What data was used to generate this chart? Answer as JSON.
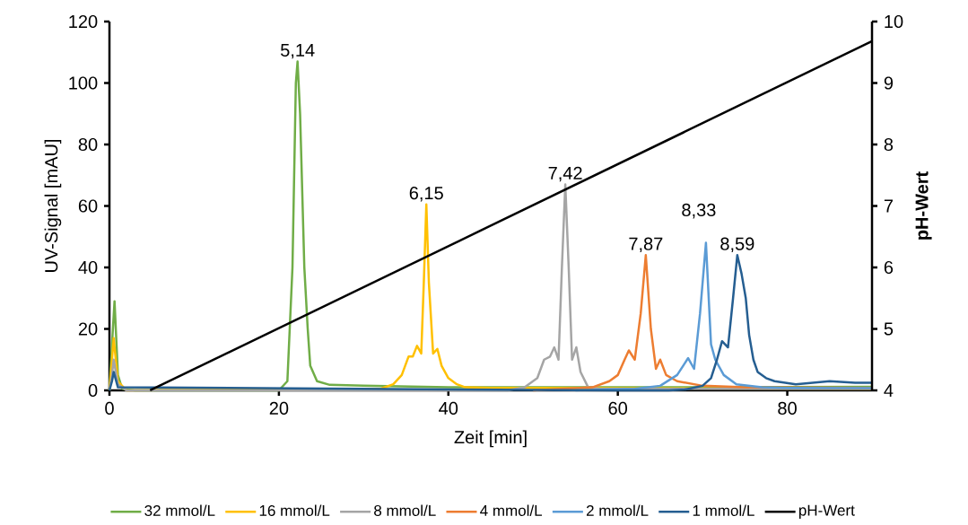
{
  "chart_data": {
    "type": "line",
    "xlabel": "Zeit [min]",
    "ylabel": "UV-Signal [mAU]",
    "y2label": "pH-Wert",
    "xlim": [
      0,
      90
    ],
    "xticks": [
      0,
      20,
      40,
      60,
      80
    ],
    "ylim": [
      0,
      120
    ],
    "yticks": [
      0,
      20,
      40,
      60,
      80,
      100,
      120
    ],
    "y2lim": [
      4,
      10
    ],
    "y2ticks": [
      4,
      5,
      6,
      7,
      8,
      9,
      10
    ],
    "grid": false,
    "legend": "bottom",
    "marker": "none",
    "line_style": "solid",
    "series": [
      {
        "name": "32 mmol/L",
        "color": "#70ad47",
        "x": [
          0,
          0.3,
          0.6,
          1,
          1.5,
          3,
          20,
          21,
          21.6,
          22,
          22.2,
          22.5,
          23,
          23.4,
          23.7,
          24.5,
          26,
          30,
          40,
          60,
          90
        ],
        "values": [
          0,
          15,
          29,
          5,
          0.5,
          0,
          0,
          3,
          40,
          100,
          107,
          90,
          40,
          20,
          8,
          3,
          1.8,
          1.5,
          1,
          1,
          1.2
        ]
      },
      {
        "name": "16 mmol/L",
        "color": "#ffc000",
        "x": [
          0,
          0.3,
          0.5,
          1,
          2,
          30,
          32,
          33.5,
          34.5,
          35.3,
          35.8,
          36.3,
          36.8,
          37.1,
          37.4,
          37.7,
          38.2,
          38.7,
          39.2,
          40,
          41,
          42,
          45,
          90
        ],
        "values": [
          0,
          10,
          17,
          3,
          0,
          0.5,
          0.5,
          2,
          5,
          11,
          11,
          14.5,
          12,
          35,
          60.5,
          35,
          12,
          13.5,
          8,
          4,
          2,
          1,
          0.8,
          0.5
        ]
      },
      {
        "name": "8 mmol/L",
        "color": "#a5a5a5",
        "x": [
          0,
          0.3,
          0.5,
          1,
          2,
          47,
          49,
          50.5,
          51.3,
          52,
          52.5,
          53,
          53.4,
          53.8,
          54.2,
          54.6,
          55.1,
          55.6,
          56.5,
          58,
          90
        ],
        "values": [
          0,
          5,
          10,
          2,
          0,
          0,
          1,
          4,
          10,
          11,
          14,
          10,
          40,
          67,
          40,
          10,
          14,
          6,
          1,
          0.5,
          0.5
        ]
      },
      {
        "name": "4 mmol/L",
        "color": "#ed7d31",
        "x": [
          50,
          57,
          59,
          60,
          60.8,
          61.3,
          62,
          62.7,
          63.3,
          63.9,
          64.5,
          65,
          65.7,
          67,
          70,
          75,
          90
        ],
        "values": [
          0,
          1,
          3,
          5,
          10,
          13,
          10,
          25,
          44,
          20,
          7,
          10,
          5,
          3,
          1.5,
          1,
          0.8
        ]
      },
      {
        "name": "2 mmol/L",
        "color": "#5b9bd5",
        "x": [
          55,
          62,
          65,
          67,
          68.3,
          69,
          69.7,
          70.4,
          71,
          71.5,
          72.5,
          74,
          77,
          80,
          90
        ],
        "values": [
          0,
          0.5,
          1.5,
          5,
          10.5,
          7,
          25,
          48,
          15,
          10,
          5,
          2,
          1,
          0.8,
          0.7
        ]
      },
      {
        "name": "1  mmol/L",
        "color": "#255e91",
        "x": [
          0,
          0.3,
          0.5,
          1,
          60,
          66,
          68,
          70,
          71,
          71.7,
          72.3,
          73,
          73.6,
          74.1,
          74.6,
          75.1,
          75.5,
          76,
          76.5,
          77.5,
          78.5,
          81,
          85,
          88,
          90
        ],
        "values": [
          0,
          3,
          6,
          1,
          0,
          0,
          0.3,
          1.5,
          4,
          10,
          16,
          14,
          30,
          44,
          38,
          30,
          18,
          10,
          6,
          4,
          3,
          2,
          3,
          2.5,
          2.5
        ]
      },
      {
        "name": "pH-Wert",
        "color": "#000000",
        "axis": "y2",
        "x": [
          4.8,
          90
        ],
        "values": [
          4,
          9.68
        ]
      }
    ],
    "annotations": [
      {
        "text": "5,14",
        "x": 22.2,
        "y": 107
      },
      {
        "text": "6,15",
        "x": 37.4,
        "y": 60.5
      },
      {
        "text": "7,42",
        "x": 53.8,
        "y": 67
      },
      {
        "text": "7,87",
        "x": 63.3,
        "y": 44
      },
      {
        "text": "8,33",
        "x": 70.4,
        "y": 48
      },
      {
        "text": "8,59",
        "x": 74.1,
        "y": 44
      }
    ]
  }
}
